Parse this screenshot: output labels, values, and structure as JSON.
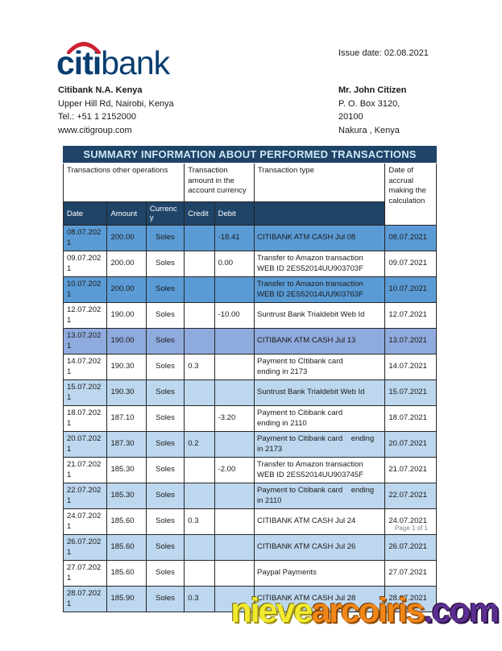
{
  "logo": {
    "citi": "citi",
    "bank": "bank"
  },
  "issue_date": "Issue date: 02.08.2021",
  "bank_info": {
    "name": "Citibank N.A. Kenya",
    "lines": [
      "Upper Hill Rd, Nairobi, Kenya",
      "Tel.: +51 1 2152000",
      "www.citigroup.com"
    ]
  },
  "customer_info": {
    "name": "Mr. John Citizen",
    "lines": [
      "P. O. Box 3120,",
      "20100",
      "Nakura , Kenya"
    ]
  },
  "table": {
    "title": "SUMMARY INFORMATION ABOUT PERFORMED TRANSACTIONS",
    "group_headers": {
      "operations": "Transactions other operations",
      "amount_currency": "Transaction amount in the account currency",
      "type": "Transaction type",
      "accrual": "Date of accrual making the calculation"
    },
    "columns": {
      "date": "Date",
      "amount": "Amount",
      "currency": "Currency",
      "credit": "Credit",
      "debit": "Debit"
    },
    "rows": [
      {
        "date": "08.07.2021",
        "amount": "200.00",
        "currency": "Soles",
        "credit": "",
        "debit": "-18.41",
        "type": "CITIBANK ATM CASH Jul 08",
        "accrual": "08.07.2021",
        "shade": "strong"
      },
      {
        "date": "09.07.2021",
        "amount": "200.00",
        "currency": "Soles",
        "credit": "",
        "debit": "0.00",
        "type": "Transfer to Amazon transaction\nWEB ID 2ES52014UU903703F",
        "accrual": "09.07.2021",
        "shade": "none"
      },
      {
        "date": "10.07.2021",
        "amount": "200.00",
        "currency": "Soles",
        "credit": "",
        "debit": "",
        "type": "Transfer to Amazon transaction\nWEB ID 2ES52014UU903763F",
        "accrual": "10.07.2021",
        "shade": "strong"
      },
      {
        "date": "12.07.2021",
        "amount": "190.00",
        "currency": "Soles",
        "credit": "",
        "debit": "-10.00",
        "type": "Suntrust Bank Trialdebit Web Id",
        "accrual": "12.07.2021",
        "shade": "none"
      },
      {
        "date": "13.07.2021",
        "amount": "190.00",
        "currency": "Soles",
        "credit": "",
        "debit": "",
        "type": "CITIBANK ATM CASH Jul 13",
        "accrual": "13.07.2021",
        "shade": "mid"
      },
      {
        "date": "14.07.2021",
        "amount": "190.30",
        "currency": "Soles",
        "credit": "0.3",
        "debit": "",
        "type": "Payment to CItibank card\nending in 2173",
        "accrual": "14.07.2021",
        "shade": "none"
      },
      {
        "date": "15.07.2021",
        "amount": "190.30",
        "currency": "Soles",
        "credit": "",
        "debit": "",
        "type": "Suntrust Bank Trialdebit Web Id",
        "accrual": "15.07.2021",
        "shade": "light"
      },
      {
        "date": "18.07.2021",
        "amount": "187.10",
        "currency": "Soles",
        "credit": "",
        "debit": "-3.20",
        "type": "Payment to Citibank card\nending in 2110",
        "accrual": "18.07.2021",
        "shade": "none"
      },
      {
        "date": "20.07.2021",
        "amount": "187.30",
        "currency": "Soles",
        "credit": "0.2",
        "debit": "",
        "type": "Payment to Citibank card    ending\nin 2173",
        "accrual": "20.07.2021",
        "shade": "light"
      },
      {
        "date": "21.07.2021",
        "amount": "185.30",
        "currency": "Soles",
        "credit": "",
        "debit": "-2.00",
        "type": "Transfer to Amazon transaction\nWEB ID 2ES52014UU903745F",
        "accrual": "21.07.2021",
        "shade": "none"
      },
      {
        "date": "22.07.2021",
        "amount": "185.30",
        "currency": "Soles",
        "credit": "",
        "debit": "",
        "type": "Payment to Citibank card    ending\nin 2110",
        "accrual": "22.07.2021",
        "shade": "light"
      },
      {
        "date": "24.07.2021",
        "amount": "185.60",
        "currency": "Soles",
        "credit": "0.3",
        "debit": "",
        "type": "CITIBANK ATM CASH Jul 24",
        "accrual": "24.07.2021",
        "shade": "none"
      },
      {
        "date": "26.07.2021",
        "amount": "185.60",
        "currency": "Soles",
        "credit": "",
        "debit": "",
        "type": "CITIBANK ATM CASH Jul 26",
        "accrual": "26.07.2021",
        "shade": "light"
      },
      {
        "date": "27.07.2021",
        "amount": "185.60",
        "currency": "Soles",
        "credit": "",
        "debit": "",
        "type": "Paypal Payments",
        "accrual": "27.07.2021",
        "shade": "none"
      },
      {
        "date": "28.07.2021",
        "amount": "185.90",
        "currency": "Soles",
        "credit": "0.3",
        "debit": "",
        "type": "CITIBANK ATM CASH Jul 28",
        "accrual": "28.07.2021",
        "shade": "light"
      }
    ]
  },
  "footer": {
    "page_number": "Page 1 of 1"
  },
  "watermark": {
    "part1": "nieve",
    "part2": "arcoiris",
    "part3": ".com"
  },
  "colors": {
    "navy_header": "#1f4468",
    "title_text": "#cfe7f7",
    "row_blue_strong": "#5b9bd5",
    "row_blue_mid": "#8faadc",
    "row_blue_light": "#bdd7ee",
    "row_white": "#ffffff",
    "logo_blue": "#073e6f",
    "logo_arc_red": "#cc2131",
    "watermark_yellow": "#f2ea2e",
    "watermark_orange": "#f08618",
    "watermark_purple": "#5c2d91",
    "footer_gray": "#7f7f7f"
  }
}
